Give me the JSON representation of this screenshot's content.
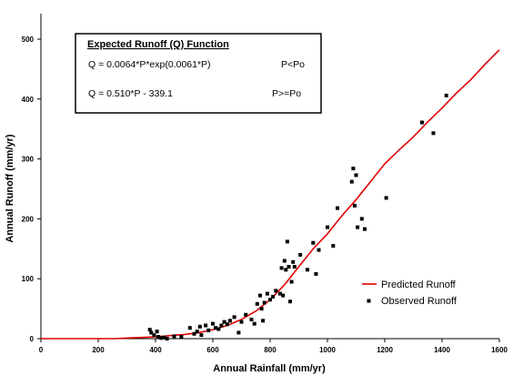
{
  "chart_data": {
    "type": "scatter",
    "title": "",
    "xlabel": "Annual Rainfall (mm/yr)",
    "ylabel": "Annual Runoff (mm/yr)",
    "xlim": [
      0,
      1600
    ],
    "ylim": [
      0,
      550
    ],
    "xticks": [
      0,
      200,
      400,
      600,
      800,
      1000,
      1200,
      1400,
      1600
    ],
    "yticks": [
      0,
      100,
      200,
      300,
      400,
      500
    ],
    "grid": false,
    "legend_position": "right",
    "colors": {
      "predicted": "#e00000",
      "observed": "#000000"
    },
    "series": [
      {
        "name": "Predicted Runoff",
        "kind": "line",
        "x": [
          0,
          260,
          300,
          350,
          400,
          450,
          500,
          550,
          600,
          650,
          700,
          750,
          800,
          850,
          900,
          950,
          1000,
          1050,
          1100,
          1150,
          1200,
          1250,
          1300,
          1350,
          1400,
          1450,
          1500,
          1550,
          1600
        ],
        "y": [
          0,
          0,
          1,
          2,
          3,
          5,
          7,
          10,
          15,
          22,
          32,
          46,
          65,
          90,
          120,
          150,
          175,
          205,
          232,
          262,
          292,
          315,
          337,
          362,
          385,
          410,
          432,
          458,
          482
        ]
      },
      {
        "name": "Observed Runoff",
        "kind": "scatter",
        "x": [
          380,
          385,
          395,
          405,
          410,
          420,
          430,
          440,
          465,
          490,
          520,
          535,
          545,
          555,
          560,
          575,
          585,
          600,
          610,
          620,
          630,
          640,
          650,
          660,
          675,
          690,
          700,
          715,
          735,
          745,
          755,
          765,
          770,
          775,
          780,
          790,
          800,
          810,
          820,
          835,
          840,
          845,
          850,
          855,
          860,
          865,
          870,
          875,
          880,
          885,
          905,
          930,
          950,
          960,
          970,
          1000,
          1020,
          1035,
          1085,
          1090,
          1095,
          1100,
          1105,
          1120,
          1130,
          1205,
          1330,
          1370,
          1415
        ],
        "y": [
          15,
          10,
          6,
          12,
          3,
          1,
          2,
          0,
          4,
          3,
          18,
          8,
          12,
          20,
          6,
          22,
          14,
          25,
          18,
          16,
          22,
          28,
          24,
          30,
          36,
          10,
          28,
          40,
          32,
          25,
          58,
          72,
          50,
          30,
          60,
          75,
          65,
          70,
          80,
          75,
          118,
          72,
          130,
          115,
          162,
          120,
          62,
          95,
          128,
          120,
          140,
          115,
          160,
          108,
          148,
          186,
          155,
          218,
          262,
          284,
          222,
          273,
          186,
          200,
          183,
          235,
          361,
          343,
          406
        ]
      }
    ],
    "annotation_box": {
      "title": "Expected Runoff (Q) Function",
      "rows": [
        {
          "equation": "Q = 0.0064*P*exp(0.0061*P)",
          "condition": "P<Po"
        },
        {
          "equation": "Q = 0.510*P - 339.1",
          "condition": "P>=Po"
        }
      ]
    }
  }
}
